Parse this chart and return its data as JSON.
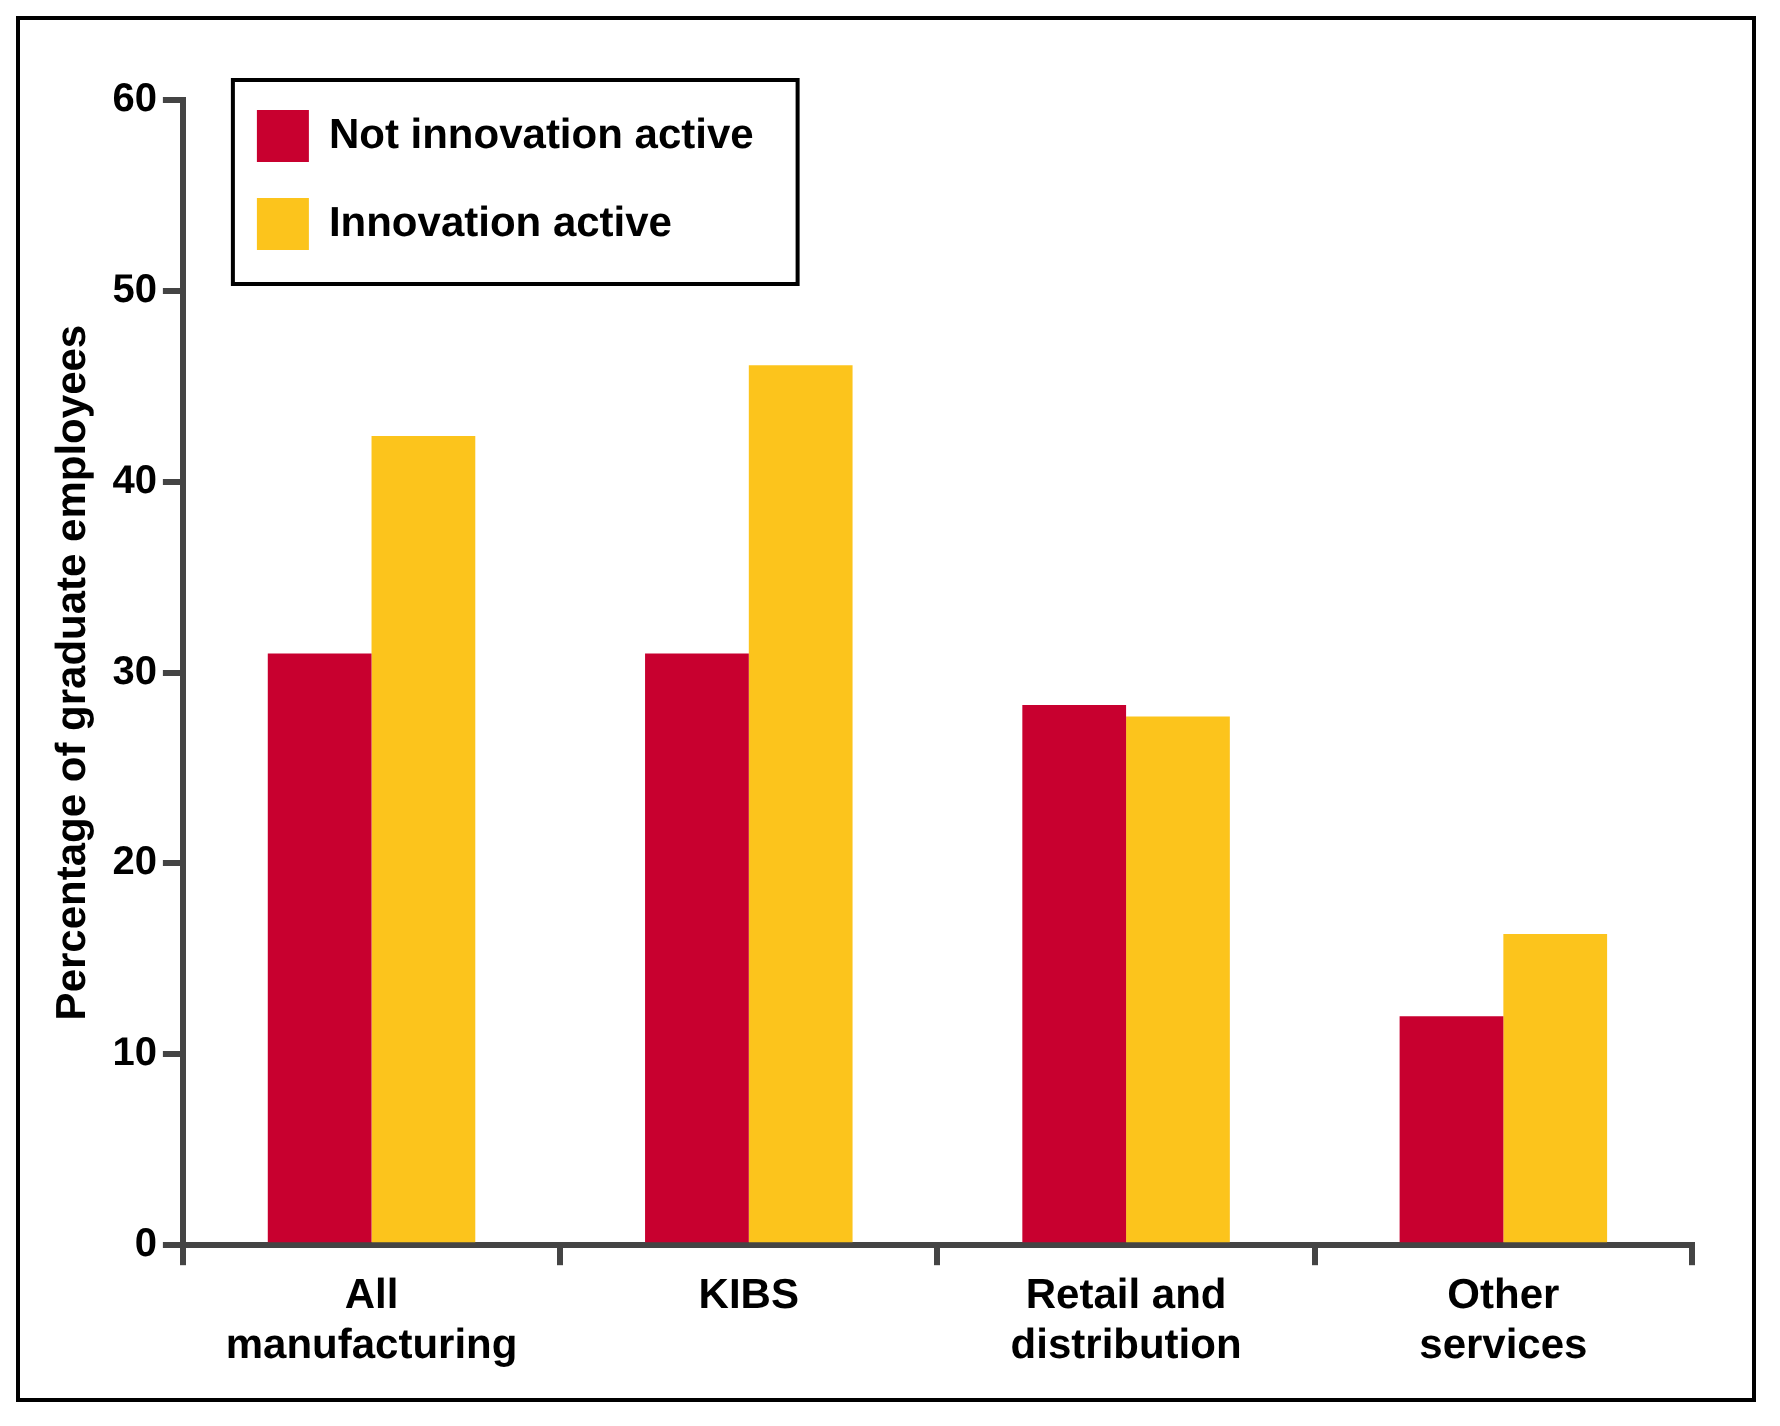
{
  "chart_data": {
    "type": "bar",
    "ylabel": "Percentage of graduate employees",
    "categories": [
      "All manufacturing",
      "KIBS",
      "Retail and distribution",
      "Other services"
    ],
    "series": [
      {
        "name": "Not innovation active",
        "color": "#c8002f",
        "values": [
          31,
          31,
          28.3,
          12
        ]
      },
      {
        "name": "Innovation active",
        "color": "#fcc41c",
        "values": [
          42.4,
          46.1,
          27.7,
          16.3
        ]
      }
    ],
    "ylim": [
      0,
      60
    ],
    "yticks": [
      0,
      10,
      20,
      30,
      40,
      50,
      60
    ],
    "grid": false,
    "legend": "top left"
  }
}
